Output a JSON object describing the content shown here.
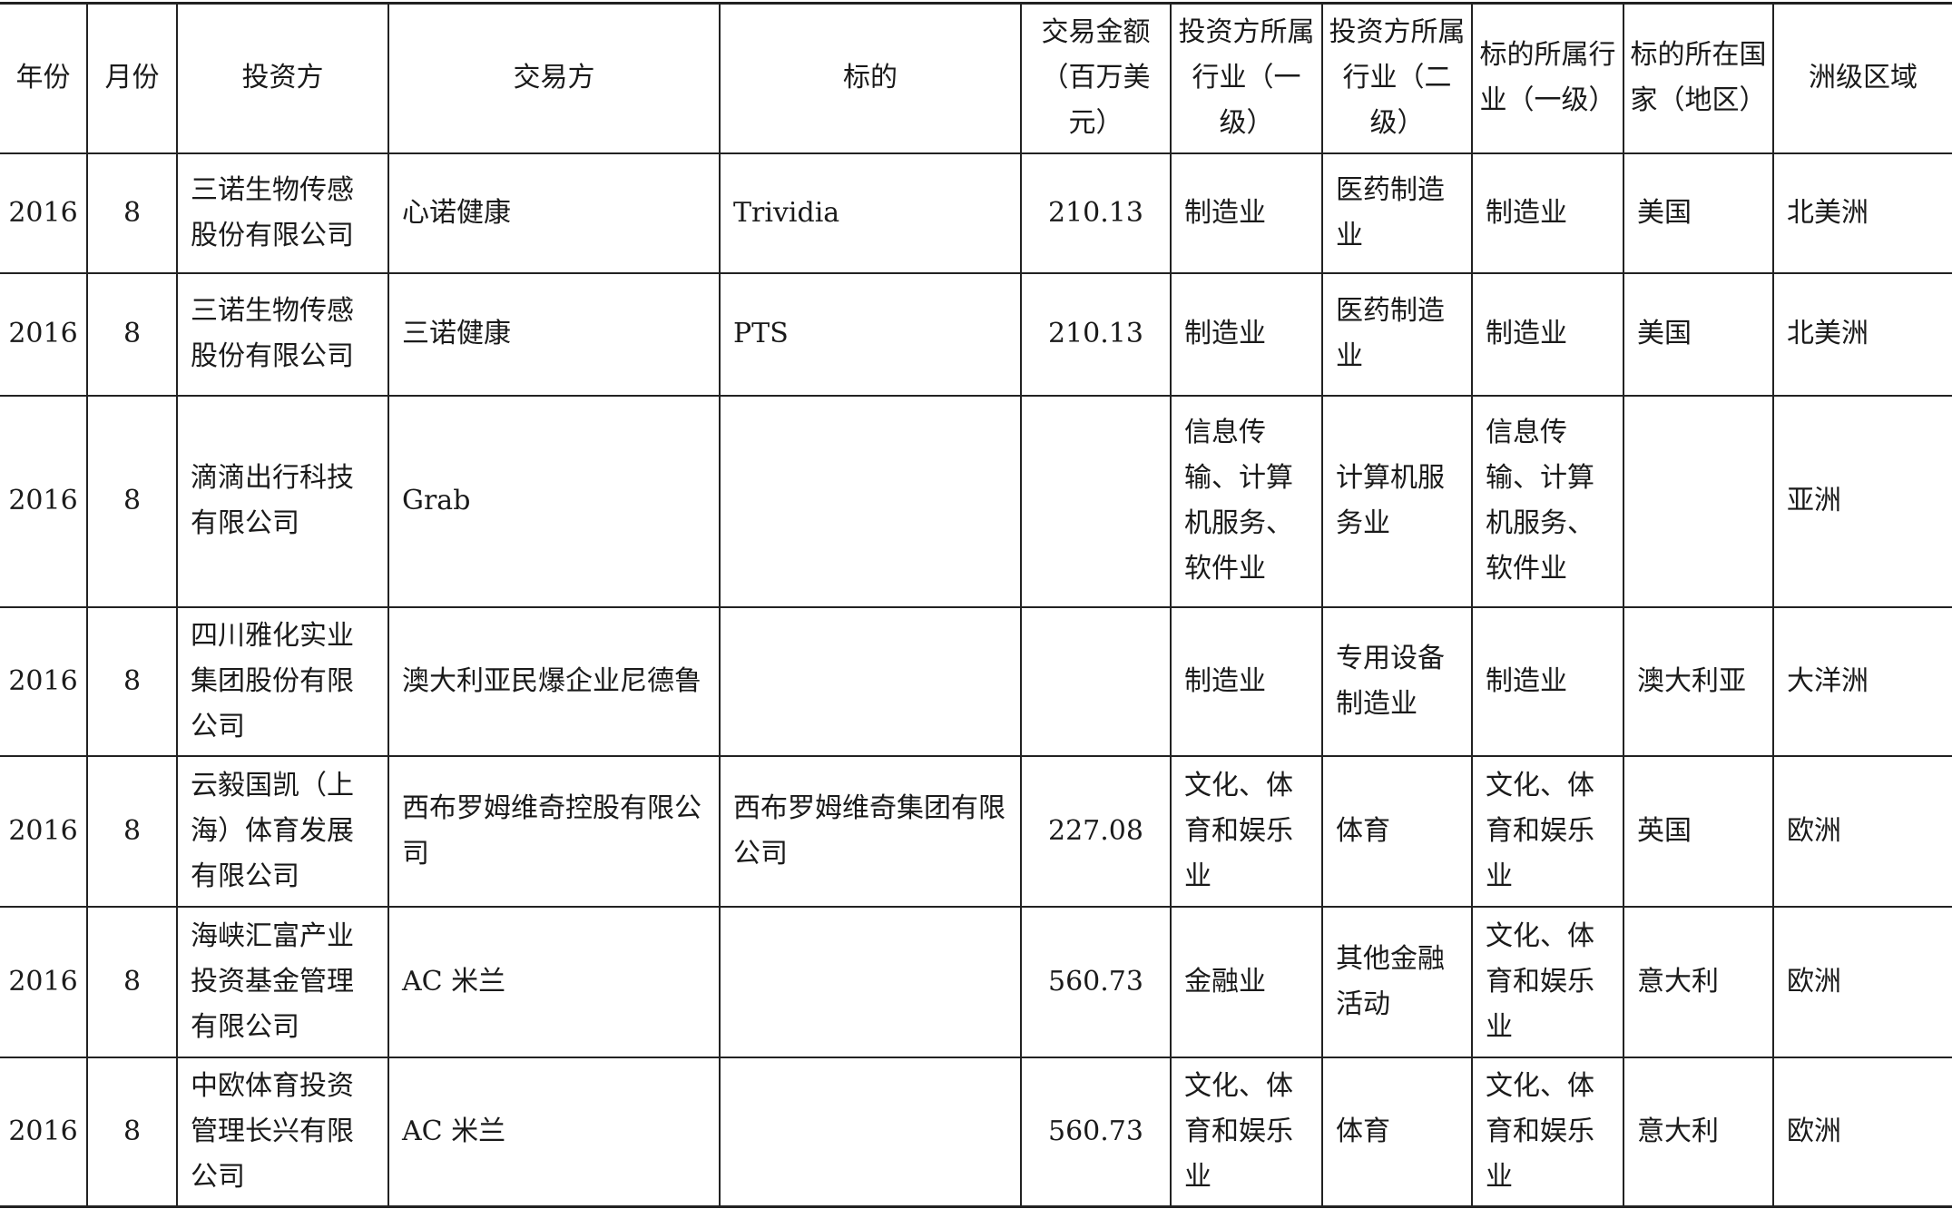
{
  "headers": [
    "年份",
    "月份",
    "投资方",
    "交易方",
    "标的",
    "交易金额（百万美元）",
    "投资方所属行业（一级）",
    "投资方所属行业（二级）",
    "标的所属行业（一级）",
    "标的所在国家（地区）",
    "洲级区域"
  ],
  "rows": [
    [
      "2016",
      "8",
      "三诺生物传感股份有限公司",
      "心诺健康",
      "Trividia",
      "210.13",
      "制造业",
      "医药制造业",
      "制造业",
      "美国",
      "北美洲"
    ],
    [
      "2016",
      "8",
      "三诺生物传感股份有限公司",
      "三诺健康",
      "PTS",
      "210.13",
      "制造业",
      "医药制造业",
      "制造业",
      "美国",
      "北美洲"
    ],
    [
      "2016",
      "8",
      "滴滴出行科技有限公司",
      "Grab",
      "",
      "",
      "信息传输、计算机服务、软件业",
      "计算机服务业",
      "信息传输、计算机服务、软件业",
      "",
      "亚洲"
    ],
    [
      "2016",
      "8",
      "四川雅化实业集团股份有限公司",
      "澳大利亚民爆企业尼德鲁",
      "",
      "",
      "制造业",
      "专用设备制造业",
      "制造业",
      "澳大利亚",
      "大洋洲"
    ],
    [
      "2016",
      "8",
      "云毅国凯（上海）体育发展有限公司",
      "西布罗姆维奇控股有限公司",
      "西布罗姆维奇集团有限公司",
      "227.08",
      "文化、体育和娱乐业",
      "体育",
      "文化、体育和娱乐业",
      "英国",
      "欧洲"
    ],
    [
      "2016",
      "8",
      "海峡汇富产业投资基金管理有限公司",
      "AC 米兰",
      "",
      "560.73",
      "金融业",
      "其他金融活动",
      "文化、体育和娱乐业",
      "意大利",
      "欧洲"
    ],
    [
      "2016",
      "8",
      "中欧体育投资管理长兴有限公司",
      "AC 米兰",
      "",
      "560.73",
      "文化、体育和娱乐业",
      "体育",
      "文化、体育和娱乐业",
      "意大利",
      "欧洲"
    ]
  ]
}
